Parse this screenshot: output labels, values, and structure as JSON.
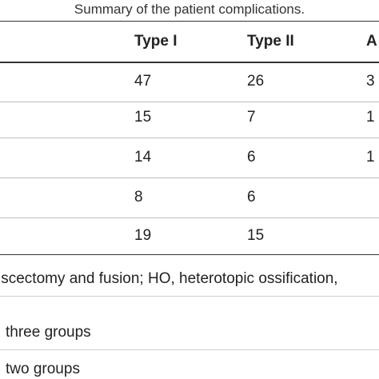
{
  "table": {
    "caption": "Summary of the patient complications.",
    "headers": [
      "Type I",
      "Type II",
      "A"
    ],
    "rows": [
      [
        "47",
        "26",
        "3"
      ],
      [
        "15",
        "7",
        "1"
      ],
      [
        "14",
        "6",
        "1"
      ],
      [
        "8",
        "6",
        ""
      ],
      [
        "19",
        "15",
        ""
      ]
    ],
    "footnotes": [
      "iscectomy and fusion; HO, heterotopic ossification,",
      "three groups",
      "two groups"
    ]
  }
}
